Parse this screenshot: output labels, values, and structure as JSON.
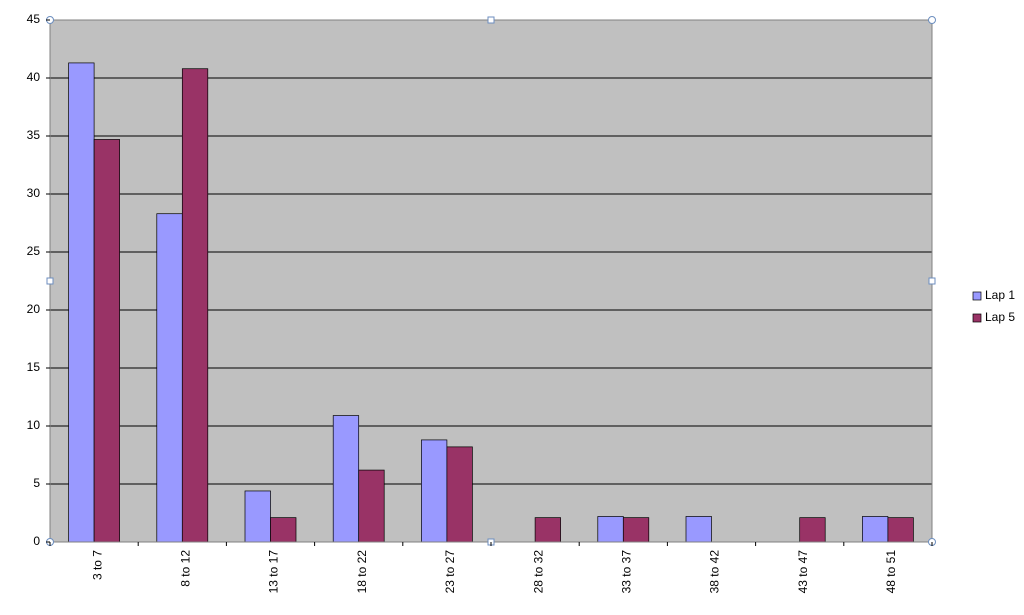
{
  "chart_data": {
    "type": "bar",
    "categories": [
      "3 to 7",
      "8 to 12",
      "13 to 17",
      "18 to 22",
      "23 to 27",
      "28 to 32",
      "33 to 37",
      "38 to 42",
      "43 to 47",
      "48 to 51"
    ],
    "series": [
      {
        "name": "Lap 1",
        "color": "#9999ff",
        "values": [
          41.3,
          28.3,
          4.4,
          10.9,
          8.8,
          0,
          2.2,
          2.2,
          0,
          2.2
        ]
      },
      {
        "name": "Lap 5",
        "color": "#993366",
        "values": [
          34.7,
          40.8,
          2.1,
          6.2,
          8.2,
          2.1,
          2.1,
          0,
          2.1,
          2.1
        ]
      }
    ],
    "ylim": [
      0,
      45
    ],
    "yticks": [
      0,
      5,
      10,
      15,
      20,
      25,
      30,
      35,
      40,
      45
    ],
    "grid": true,
    "legend": "right"
  }
}
